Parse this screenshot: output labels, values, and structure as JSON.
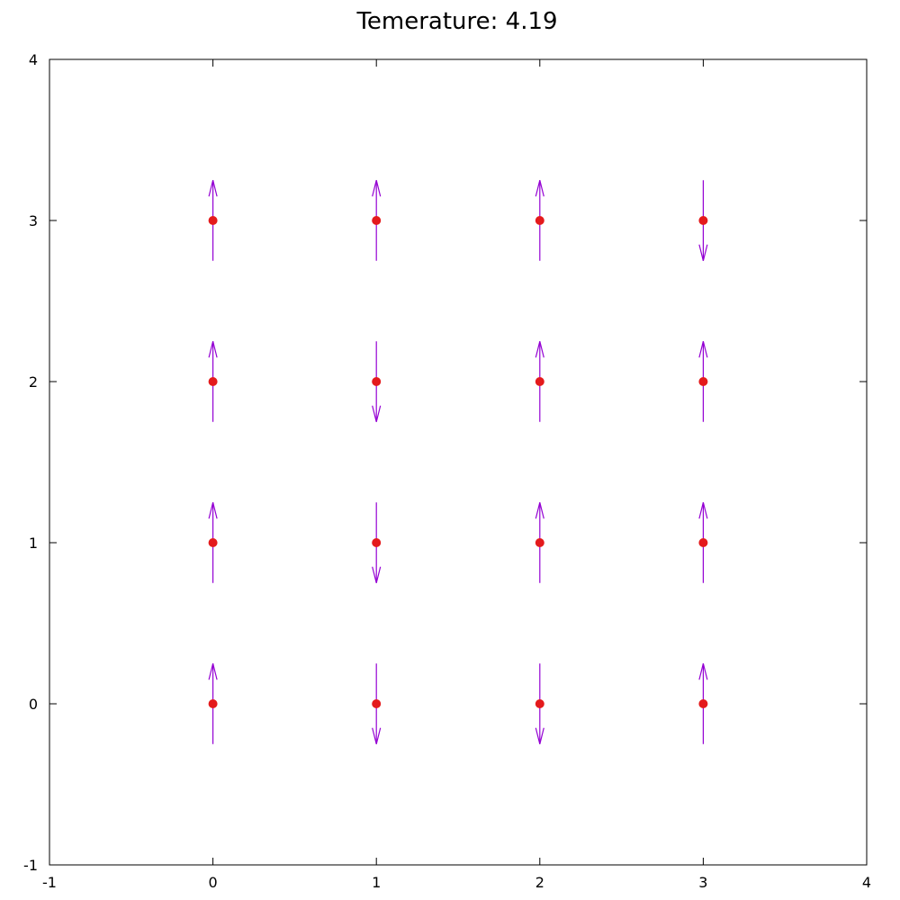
{
  "chart_data": {
    "type": "scatter",
    "title": "Temerature: 4.19",
    "xlabel": "",
    "ylabel": "",
    "xlim": [
      -1,
      4
    ],
    "ylim": [
      -1,
      4
    ],
    "xticks": [
      -1,
      0,
      1,
      2,
      3,
      4
    ],
    "yticks": [
      -1,
      0,
      1,
      2,
      3,
      4
    ],
    "grid": false,
    "arrow_length": 0.5,
    "colors": {
      "point": "#e41a1c",
      "arrow": "#9400d3",
      "axis": "#000000"
    },
    "points": [
      {
        "x": 0,
        "y": 3,
        "spin": "up"
      },
      {
        "x": 1,
        "y": 3,
        "spin": "up"
      },
      {
        "x": 2,
        "y": 3,
        "spin": "up"
      },
      {
        "x": 3,
        "y": 3,
        "spin": "down"
      },
      {
        "x": 0,
        "y": 2,
        "spin": "up"
      },
      {
        "x": 1,
        "y": 2,
        "spin": "down"
      },
      {
        "x": 2,
        "y": 2,
        "spin": "up"
      },
      {
        "x": 3,
        "y": 2,
        "spin": "up"
      },
      {
        "x": 0,
        "y": 1,
        "spin": "up"
      },
      {
        "x": 1,
        "y": 1,
        "spin": "down"
      },
      {
        "x": 2,
        "y": 1,
        "spin": "up"
      },
      {
        "x": 3,
        "y": 1,
        "spin": "up"
      },
      {
        "x": 0,
        "y": 0,
        "spin": "up"
      },
      {
        "x": 1,
        "y": 0,
        "spin": "down"
      },
      {
        "x": 2,
        "y": 0,
        "spin": "down"
      },
      {
        "x": 3,
        "y": 0,
        "spin": "up"
      }
    ]
  }
}
